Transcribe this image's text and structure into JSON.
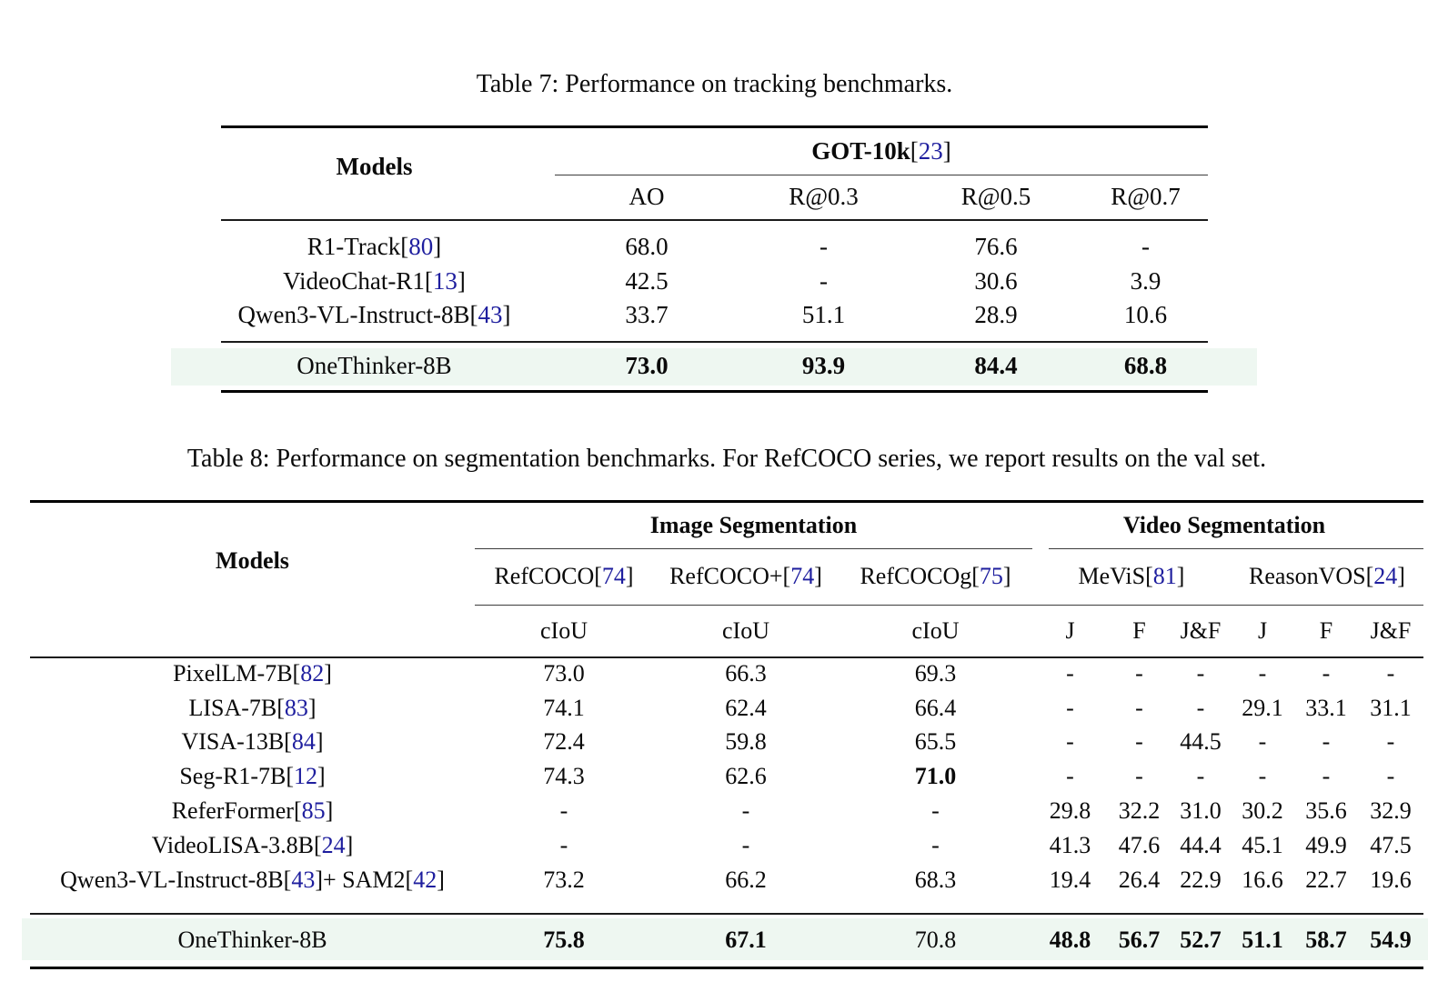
{
  "punct": {
    "cite_open": "[",
    "cite_close": "]"
  },
  "colors": {
    "citation": "#1e1e9e",
    "highlight": "#eef7f1",
    "text": "#0a0a0a"
  },
  "table7": {
    "caption": "Table 7: Performance on tracking benchmarks.",
    "models_header": "Models",
    "group_header": [
      {
        "t": "GOT-10k "
      },
      {
        "c": "23"
      }
    ],
    "columns": [
      "AO",
      "R@0.3",
      "R@0.5",
      "R@0.7"
    ],
    "rows": [
      {
        "label": [
          {
            "t": "R1-Track "
          },
          {
            "c": "80"
          }
        ],
        "values": [
          "68.0",
          "-",
          "76.6",
          "-"
        ],
        "bold": []
      },
      {
        "label": [
          {
            "t": "VideoChat-R1 "
          },
          {
            "c": "13"
          }
        ],
        "values": [
          "42.5",
          "-",
          "30.6",
          "3.9"
        ],
        "bold": []
      },
      {
        "label": [
          {
            "t": "Qwen3-VL-Instruct-8B "
          },
          {
            "c": "43"
          }
        ],
        "values": [
          "33.7",
          "51.1",
          "28.9",
          "10.6"
        ],
        "bold": []
      }
    ],
    "highlight_row": {
      "label": [
        {
          "t": "OneThinker-8B"
        }
      ],
      "values": [
        "73.0",
        "93.9",
        "84.4",
        "68.8"
      ],
      "bold": [
        0,
        1,
        2,
        3
      ]
    }
  },
  "table8": {
    "caption": "Table 8: Performance on segmentation benchmarks. For RefCOCO series, we report results on the val set.",
    "models_header": "Models",
    "groups": [
      {
        "label": "Image Segmentation"
      },
      {
        "label": "Video Segmentation"
      }
    ],
    "benchmarks": [
      {
        "label": [
          {
            "t": "RefCOCO "
          },
          {
            "c": "74"
          }
        ]
      },
      {
        "label": [
          {
            "t": "RefCOCO+ "
          },
          {
            "c": "74"
          }
        ]
      },
      {
        "label": [
          {
            "t": "RefCOCOg "
          },
          {
            "c": "75"
          }
        ]
      },
      {
        "label": [
          {
            "t": "MeViS "
          },
          {
            "c": "81"
          }
        ]
      },
      {
        "label": [
          {
            "t": "ReasonVOS "
          },
          {
            "c": "24"
          }
        ]
      }
    ],
    "subcolumns": [
      "cIoU",
      "cIoU",
      "cIoU",
      "J",
      "F",
      "J&F",
      "J",
      "F",
      "J&F"
    ],
    "rows": [
      {
        "label": [
          {
            "t": "PixelLM-7B "
          },
          {
            "c": "82"
          }
        ],
        "values": [
          "73.0",
          "66.3",
          "69.3",
          "-",
          "-",
          "-",
          "-",
          "-",
          "-"
        ],
        "bold": []
      },
      {
        "label": [
          {
            "t": "LISA-7B "
          },
          {
            "c": "83"
          }
        ],
        "values": [
          "74.1",
          "62.4",
          "66.4",
          "-",
          "-",
          "-",
          "29.1",
          "33.1",
          "31.1"
        ],
        "bold": []
      },
      {
        "label": [
          {
            "t": "VISA-13B "
          },
          {
            "c": "84"
          }
        ],
        "values": [
          "72.4",
          "59.8",
          "65.5",
          "-",
          "-",
          "44.5",
          "-",
          "-",
          "-"
        ],
        "bold": []
      },
      {
        "label": [
          {
            "t": "Seg-R1-7B "
          },
          {
            "c": "12"
          }
        ],
        "values": [
          "74.3",
          "62.6",
          "71.0",
          "-",
          "-",
          "-",
          "-",
          "-",
          "-"
        ],
        "bold": [
          2
        ]
      },
      {
        "label": [
          {
            "t": "ReferFormer "
          },
          {
            "c": "85"
          }
        ],
        "values": [
          "-",
          "-",
          "-",
          "29.8",
          "32.2",
          "31.0",
          "30.2",
          "35.6",
          "32.9"
        ],
        "bold": []
      },
      {
        "label": [
          {
            "t": "VideoLISA-3.8B "
          },
          {
            "c": "24"
          }
        ],
        "values": [
          "-",
          "-",
          "-",
          "41.3",
          "47.6",
          "44.4",
          "45.1",
          "49.9",
          "47.5"
        ],
        "bold": []
      },
      {
        "label": [
          {
            "t": "Qwen3-VL-Instruct-8B "
          },
          {
            "c": "43"
          },
          {
            "t": " + SAM2 "
          },
          {
            "c": "42"
          }
        ],
        "values": [
          "73.2",
          "66.2",
          "68.3",
          "19.4",
          "26.4",
          "22.9",
          "16.6",
          "22.7",
          "19.6"
        ],
        "bold": []
      }
    ],
    "highlight_row": {
      "label": [
        {
          "t": "OneThinker-8B"
        }
      ],
      "values": [
        "75.8",
        "67.1",
        "70.8",
        "48.8",
        "56.7",
        "52.7",
        "51.1",
        "58.7",
        "54.9"
      ],
      "bold": [
        0,
        1,
        3,
        4,
        5,
        6,
        7,
        8
      ]
    }
  }
}
